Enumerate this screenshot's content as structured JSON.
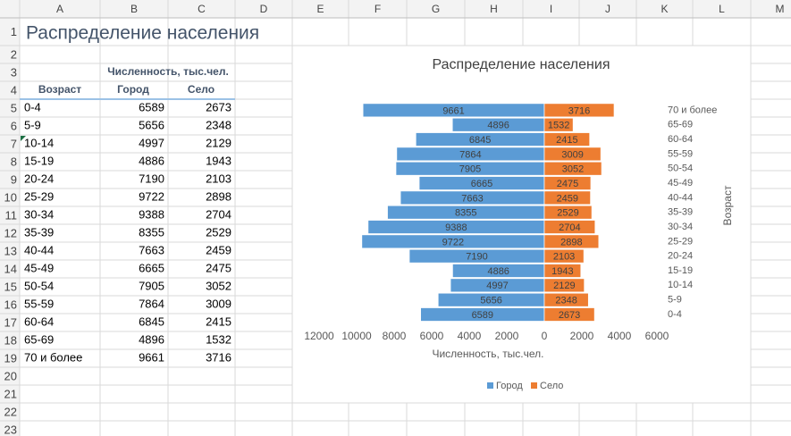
{
  "sheet": {
    "columns": [
      "A",
      "B",
      "C",
      "D",
      "E",
      "F",
      "G",
      "H",
      "I",
      "J",
      "K",
      "L",
      "M"
    ],
    "row_numbers": [
      1,
      2,
      3,
      4,
      5,
      6,
      7,
      8,
      9,
      10,
      11,
      12,
      13,
      14,
      15,
      16,
      17,
      18,
      19,
      20,
      21,
      22,
      23
    ],
    "title": "Распределение населения",
    "group_header": "Численность, тыс.чел.",
    "headers": [
      "Возраст",
      "Город",
      "Село"
    ],
    "table": {
      "rows": [
        [
          "0-4",
          6589,
          2673
        ],
        [
          "5-9",
          5656,
          2348
        ],
        [
          "10-14",
          4997,
          2129
        ],
        [
          "15-19",
          4886,
          1943
        ],
        [
          "20-24",
          7190,
          2103
        ],
        [
          "25-29",
          9722,
          2898
        ],
        [
          "30-34",
          9388,
          2704
        ],
        [
          "35-39",
          8355,
          2529
        ],
        [
          "40-44",
          7663,
          2459
        ],
        [
          "45-49",
          6665,
          2475
        ],
        [
          "50-54",
          7905,
          3052
        ],
        [
          "55-59",
          7864,
          3009
        ],
        [
          "60-64",
          6845,
          2415
        ],
        [
          "65-69",
          4896,
          1532
        ],
        [
          "70 и более",
          9661,
          3716
        ]
      ]
    }
  },
  "chart_data": {
    "type": "pyramid",
    "title": "Распределение населения",
    "x_label": "Численность, тыс.чел.",
    "y_label": "Возраст",
    "categories": [
      "0-4",
      "5-9",
      "10-14",
      "15-19",
      "20-24",
      "25-29",
      "30-34",
      "35-39",
      "40-44",
      "45-49",
      "50-54",
      "55-59",
      "60-64",
      "65-69",
      "70 и более"
    ],
    "series": [
      {
        "name": "Город",
        "color": "#5b9bd5",
        "values": [
          6589,
          5656,
          4997,
          4886,
          7190,
          9722,
          9388,
          8355,
          7663,
          6665,
          7905,
          7864,
          6845,
          4896,
          9661
        ]
      },
      {
        "name": "Село",
        "color": "#ed7d31",
        "values": [
          2673,
          2348,
          2129,
          1943,
          2103,
          2898,
          2704,
          2529,
          2459,
          2475,
          3052,
          3009,
          2415,
          1532,
          3716
        ]
      }
    ],
    "xlim": [
      -12000,
      6000
    ],
    "xticks": [
      {
        "value": -12000,
        "label": "12000"
      },
      {
        "value": -10000,
        "label": "10000"
      },
      {
        "value": -8000,
        "label": "8000"
      },
      {
        "value": -6000,
        "label": "6000"
      },
      {
        "value": -4000,
        "label": "4000"
      },
      {
        "value": -2000,
        "label": "2000"
      },
      0,
      2000,
      4000,
      6000
    ],
    "legend": "bottom"
  }
}
